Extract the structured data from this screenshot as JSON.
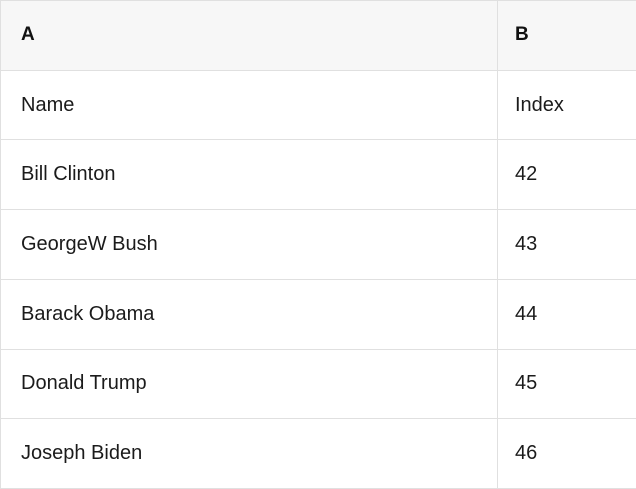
{
  "table": {
    "column_headers": [
      "A",
      "B"
    ],
    "rows": [
      {
        "a": "Name",
        "b": "Index"
      },
      {
        "a": "Bill Clinton",
        "b": "42"
      },
      {
        "a": "GeorgeW Bush",
        "b": "43"
      },
      {
        "a": "Barack Obama",
        "b": "44"
      },
      {
        "a": "Donald Trump",
        "b": "45"
      },
      {
        "a": "Joseph Biden",
        "b": "46"
      }
    ]
  },
  "colors": {
    "header_background": "#f7f7f7",
    "row_background": "#ffffff",
    "border": "#e0e0e0",
    "text": "#1b1b1b"
  }
}
